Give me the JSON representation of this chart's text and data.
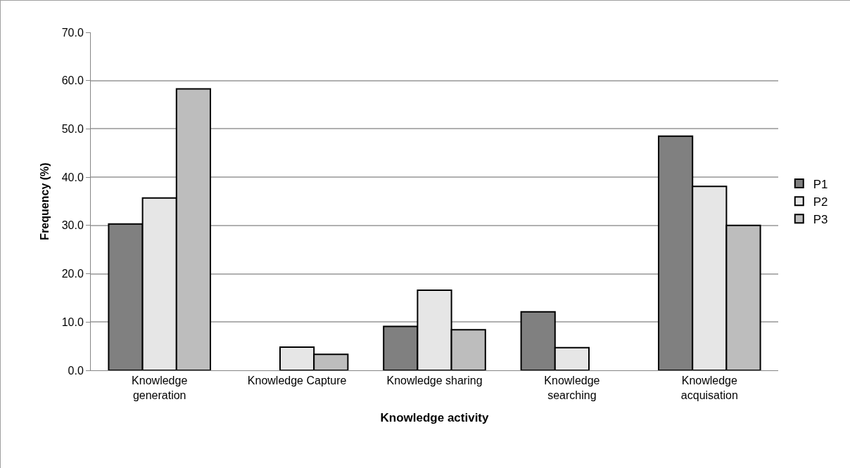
{
  "chart_data": {
    "type": "bar",
    "xlabel": "Knowledge activity",
    "ylabel": "Frequency (%)",
    "categories": [
      "Knowledge\ngeneration",
      "Knowledge Capture",
      "Knowledge sharing",
      "Knowledge\nsearching",
      "Knowledge\nacquisation"
    ],
    "series": [
      {
        "name": "P1",
        "color": "#808080",
        "values": [
          30.3,
          null,
          9.1,
          12.1,
          48.5
        ]
      },
      {
        "name": "P2",
        "color": "#e6e6e6",
        "values": [
          35.7,
          4.8,
          16.6,
          4.7,
          38.1
        ]
      },
      {
        "name": "P3",
        "color": "#bdbdbd",
        "values": [
          58.3,
          3.3,
          8.4,
          null,
          30.0
        ]
      }
    ],
    "ylim": [
      0,
      70
    ],
    "yticks": [
      {
        "value": 0,
        "label": "0.0"
      },
      {
        "value": 10,
        "label": "10.0"
      },
      {
        "value": 20,
        "label": "20.0"
      },
      {
        "value": 30,
        "label": "30.0"
      },
      {
        "value": 40,
        "label": "40.0"
      },
      {
        "value": 50,
        "label": "50.0"
      },
      {
        "value": 60,
        "label": "60.0"
      },
      {
        "value": 70,
        "label": "70.0"
      }
    ],
    "grid": "y",
    "legend": "right"
  }
}
